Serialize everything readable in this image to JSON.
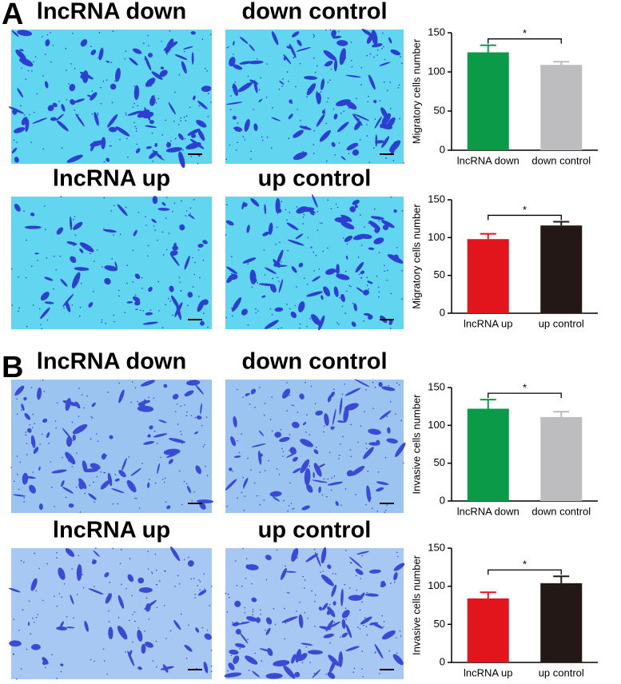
{
  "panels": [
    {
      "label": "A",
      "images": [
        {
          "title": "lncRNA down"
        },
        {
          "title": "down control"
        },
        {
          "title": "lncRNA up"
        },
        {
          "title": "up control"
        }
      ]
    },
    {
      "label": "B",
      "images": [
        {
          "title": "lncRNA down"
        },
        {
          "title": "down control"
        },
        {
          "title": "lncRNA up"
        },
        {
          "title": "up control"
        }
      ]
    }
  ],
  "chart_data": [
    {
      "type": "bar",
      "ylabel": "Migratory cells number",
      "categories": [
        "lncRNA down",
        "down control"
      ],
      "values": [
        125,
        109
      ],
      "errors": [
        9,
        4
      ],
      "colors": [
        "#0a9a48",
        "#bdbdbf"
      ],
      "ylim": [
        0,
        150
      ],
      "yticks": [
        0,
        50,
        100,
        150
      ],
      "annotation": "*"
    },
    {
      "type": "bar",
      "ylabel": "Migratory cells number",
      "categories": [
        "lncRNA up",
        "up control"
      ],
      "values": [
        98,
        116
      ],
      "errors": [
        7,
        5
      ],
      "colors": [
        "#e2141c",
        "#231815"
      ],
      "ylim": [
        0,
        150
      ],
      "yticks": [
        0,
        50,
        100,
        150
      ],
      "annotation": "*"
    },
    {
      "type": "bar",
      "ylabel": "Invasive cells number",
      "categories": [
        "lncRNA down",
        "down control"
      ],
      "values": [
        122,
        111
      ],
      "errors": [
        12,
        7
      ],
      "colors": [
        "#0a9a48",
        "#bdbdbf"
      ],
      "ylim": [
        0,
        150
      ],
      "yticks": [
        0,
        50,
        100,
        150
      ],
      "annotation": "*"
    },
    {
      "type": "bar",
      "ylabel": "Invasive cells number",
      "categories": [
        "lncRNA up",
        "up control"
      ],
      "values": [
        84,
        104
      ],
      "errors": [
        8,
        9
      ],
      "colors": [
        "#e2141c",
        "#231815"
      ],
      "ylim": [
        0,
        150
      ],
      "yticks": [
        0,
        50,
        100,
        150
      ],
      "annotation": "*"
    }
  ]
}
